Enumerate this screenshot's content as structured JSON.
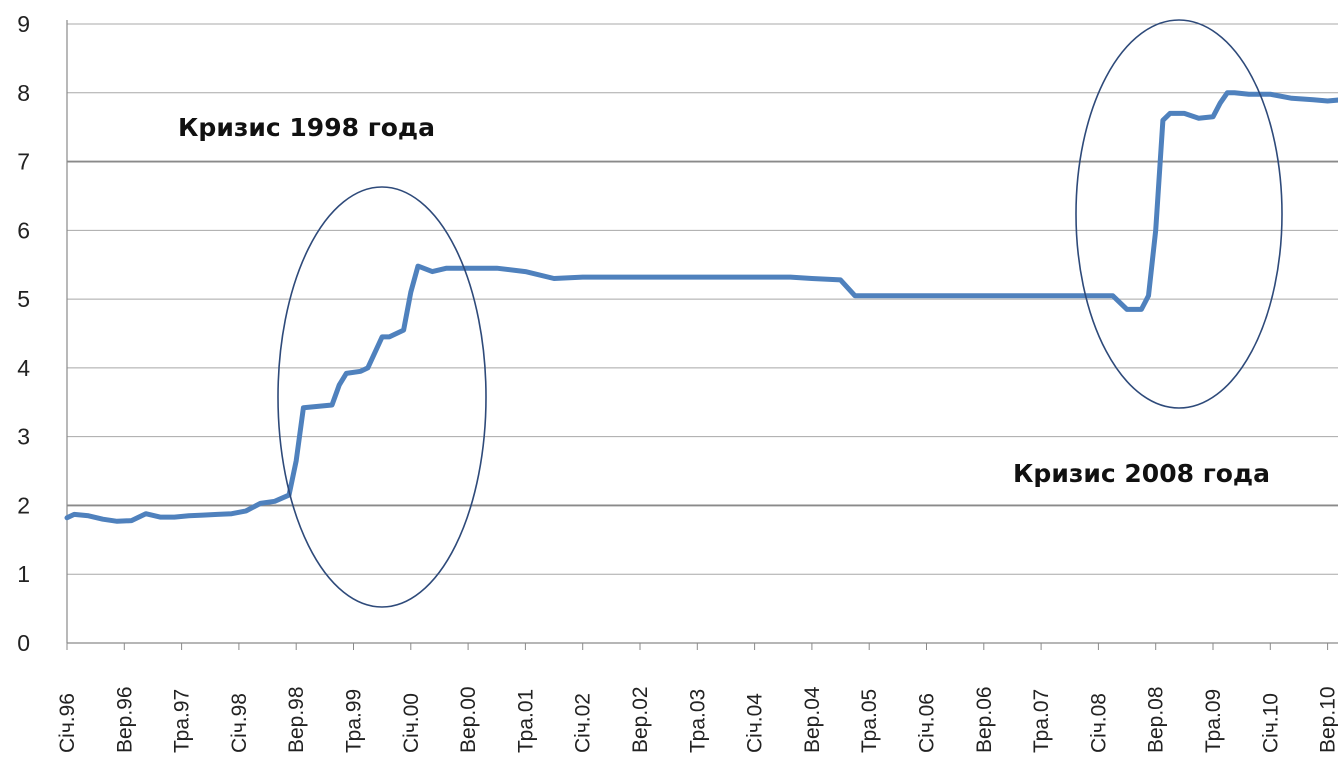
{
  "chart_data": {
    "type": "line",
    "title": "",
    "xlabel": "",
    "ylabel": "",
    "ylim": [
      0,
      9
    ],
    "yticks": [
      "0",
      "1",
      "2",
      "3",
      "4",
      "5",
      "6",
      "7",
      "8",
      "9"
    ],
    "grid": true,
    "legend": "none",
    "line_color": "#4f81bd",
    "x_tick_labels": [
      "Січ.96",
      "Вер.96",
      "Тра.97",
      "Січ.98",
      "Вер.98",
      "Тра.99",
      "Січ.00",
      "Вер.00",
      "Тра.01",
      "Січ.02",
      "Вер.02",
      "Тра.03",
      "Січ.04",
      "Вер.04",
      "Тра.05",
      "Січ.06",
      "Вер.06",
      "Тра.07",
      "Січ.08",
      "Вер.08",
      "Тра.09",
      "Січ.10",
      "Вер.10"
    ],
    "series": [
      {
        "x": [
          "1996-01",
          "1996-02",
          "1996-04",
          "1996-06",
          "1996-08",
          "1996-10",
          "1996-12",
          "1997-02",
          "1997-04",
          "1997-06",
          "1997-08",
          "1997-10",
          "1997-12",
          "1998-02",
          "1998-04",
          "1998-06",
          "1998-08",
          "1998-09",
          "1998-10",
          "1998-12",
          "1999-02",
          "1999-03",
          "1999-04",
          "1999-06",
          "1999-07",
          "1999-09",
          "1999-10",
          "1999-12",
          "2000-01",
          "2000-02",
          "2000-04",
          "2000-06",
          "2000-09",
          "2001-01",
          "2001-05",
          "2001-09",
          "2002-01",
          "2002-05",
          "2003-01",
          "2004-01",
          "2004-06",
          "2004-09",
          "2005-01",
          "2005-03",
          "2005-05",
          "2006-01",
          "2007-01",
          "2008-01",
          "2008-03",
          "2008-05",
          "2008-07",
          "2008-08",
          "2008-09",
          "2008-10",
          "2008-11",
          "2009-01",
          "2009-03",
          "2009-05",
          "2009-06",
          "2009-07",
          "2009-08",
          "2009-10",
          "2010-01",
          "2010-04",
          "2010-07",
          "2010-09",
          "2010-11"
        ],
        "values": [
          1.82,
          1.87,
          1.85,
          1.8,
          1.77,
          1.78,
          1.88,
          1.83,
          1.83,
          1.85,
          1.86,
          1.87,
          1.88,
          1.92,
          2.03,
          2.06,
          2.15,
          2.65,
          3.42,
          3.44,
          3.46,
          3.75,
          3.92,
          3.95,
          4.0,
          4.45,
          4.45,
          4.55,
          5.1,
          5.48,
          5.4,
          5.45,
          5.45,
          5.45,
          5.4,
          5.3,
          5.32,
          5.32,
          5.32,
          5.32,
          5.32,
          5.3,
          5.28,
          5.05,
          5.05,
          5.05,
          5.05,
          5.05,
          5.05,
          4.85,
          4.85,
          5.05,
          6.0,
          7.6,
          7.7,
          7.7,
          7.63,
          7.65,
          7.85,
          8.0,
          8.0,
          7.98,
          7.98,
          7.92,
          7.9,
          7.88,
          7.9
        ]
      }
    ],
    "annotations": [
      {
        "text": "Кризис 1998 года"
      },
      {
        "text": "Кризис 2008 года"
      }
    ]
  }
}
